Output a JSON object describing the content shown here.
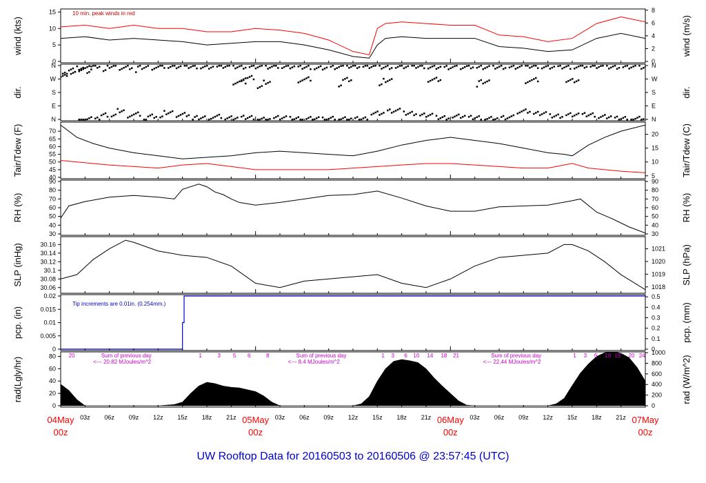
{
  "footer": {
    "title": "UW Rooftop Data for 20160503  to  20160506 @ 23:57:45  (UTC)",
    "color": "#0000cc"
  },
  "time_axis": {
    "hours_total": 72,
    "minor_labels": [
      {
        "h": 3,
        "t": "03z"
      },
      {
        "h": 6,
        "t": "06z"
      },
      {
        "h": 9,
        "t": "09z"
      },
      {
        "h": 12,
        "t": "12z"
      },
      {
        "h": 15,
        "t": "15z"
      },
      {
        "h": 18,
        "t": "18z"
      },
      {
        "h": 21,
        "t": "21z"
      },
      {
        "h": 27,
        "t": "03z"
      },
      {
        "h": 30,
        "t": "06z"
      },
      {
        "h": 33,
        "t": "09z"
      },
      {
        "h": 36,
        "t": "12z"
      },
      {
        "h": 39,
        "t": "15z"
      },
      {
        "h": 42,
        "t": "18z"
      },
      {
        "h": 45,
        "t": "21z"
      },
      {
        "h": 51,
        "t": "03z"
      },
      {
        "h": 54,
        "t": "06z"
      },
      {
        "h": 57,
        "t": "09z"
      },
      {
        "h": 60,
        "t": "12z"
      },
      {
        "h": 63,
        "t": "15z"
      },
      {
        "h": 66,
        "t": "18z"
      },
      {
        "h": 69,
        "t": "21z"
      }
    ],
    "day_labels": [
      {
        "h": 0,
        "date": "04May",
        "hour": "00z"
      },
      {
        "h": 24,
        "date": "05May",
        "hour": "00z"
      },
      {
        "h": 48,
        "date": "06May",
        "hour": "00z"
      },
      {
        "h": 72,
        "date": "07May",
        "hour": "00z"
      }
    ],
    "day_label_color": "#ff0000"
  },
  "chart_data": [
    {
      "type": "line",
      "id": "wind",
      "ylabel_left": "wind (kts)",
      "ylabel_right": "wind (m/s)",
      "yticks_left": [
        0,
        5,
        10,
        15
      ],
      "ylim_left": [
        0,
        15.5
      ],
      "yticks_right": [
        0,
        2,
        4,
        6,
        8
      ],
      "ylim_right": [
        0,
        8
      ],
      "annotation": "10 min. peak winds in red",
      "annotation_color": "#cc0000",
      "series": [
        {
          "color": "#000000",
          "x": [
            0,
            3,
            6,
            9,
            12,
            15,
            18,
            21,
            24,
            27,
            30,
            33,
            36,
            38,
            39,
            40,
            42,
            45,
            48,
            51,
            54,
            57,
            60,
            63,
            66,
            69,
            72
          ],
          "values": [
            7,
            7.5,
            6.5,
            7,
            6.5,
            6,
            5,
            5.5,
            6,
            6,
            5,
            3.5,
            1.5,
            1,
            5,
            7,
            7.5,
            7,
            7,
            7,
            4.5,
            4,
            3,
            3.5,
            7,
            8.5,
            7
          ]
        },
        {
          "color": "#ff0000",
          "x": [
            0,
            3,
            6,
            9,
            12,
            15,
            18,
            21,
            24,
            27,
            30,
            33,
            36,
            38,
            39,
            40,
            42,
            45,
            48,
            51,
            54,
            57,
            60,
            63,
            66,
            69,
            72
          ],
          "values": [
            10.5,
            11,
            10,
            11,
            10,
            10,
            9,
            9,
            10,
            9.5,
            8.5,
            6.5,
            3,
            2,
            10,
            11.5,
            12,
            11.5,
            11,
            11,
            8,
            7.5,
            6,
            7,
            11.5,
            13.5,
            12
          ]
        }
      ]
    },
    {
      "type": "scatter",
      "id": "dir",
      "ylabel_left": "dir.",
      "ylabel_right": "dir.",
      "yticks_left": [
        "N",
        "E",
        "S",
        "W",
        "N"
      ],
      "ylim_degrees": [
        0,
        360
      ],
      "series": [
        {
          "color": "#000000",
          "x": [
            0,
            1,
            2,
            3,
            4,
            6,
            8,
            10,
            12,
            14,
            16,
            18,
            20,
            22,
            24,
            26,
            28,
            30,
            32,
            34,
            36,
            38,
            40,
            42,
            44,
            46,
            48,
            50,
            52,
            54,
            56,
            58,
            60,
            62,
            64,
            66,
            68,
            70,
            72
          ],
          "values": [
            300,
            330,
            345,
            350,
            355,
            355,
            350,
            352,
            355,
            354,
            356,
            355,
            354,
            352,
            355,
            354,
            352,
            350,
            348,
            352,
            355,
            356,
            353,
            352,
            355,
            352,
            350,
            352,
            348,
            352,
            354,
            355,
            352,
            354,
            355,
            354,
            352,
            355,
            354
          ]
        },
        {
          "color": "#000000",
          "x": [
            3,
            5,
            7,
            9,
            11,
            13,
            15,
            17,
            19,
            21,
            23,
            25,
            27,
            29,
            31,
            33,
            35,
            37,
            39,
            41,
            43,
            45,
            47,
            49,
            51,
            53,
            55,
            57,
            59,
            61,
            63,
            65,
            67,
            69,
            71
          ],
          "values": [
            10,
            30,
            60,
            40,
            20,
            45,
            35,
            15,
            20,
            10,
            15,
            5,
            10,
            5,
            8,
            5,
            3,
            5,
            45,
            60,
            40,
            30,
            15,
            20,
            12,
            8,
            15,
            55,
            40,
            25,
            35,
            30,
            20,
            10,
            5
          ]
        },
        {
          "color": "#000000",
          "x": [
            22,
            23,
            25,
            30,
            35,
            40,
            46,
            52,
            58,
            63
          ],
          "values": [
            270,
            280,
            250,
            275,
            265,
            260,
            270,
            255,
            265,
            260
          ]
        }
      ]
    },
    {
      "type": "line",
      "id": "temp",
      "ylabel_left": "Tair/Tdew (F)",
      "ylabel_right": "Tair/Tdew (C)",
      "yticks_left": [
        40,
        45,
        50,
        55,
        60,
        65,
        70
      ],
      "ylim_left": [
        40,
        75
      ],
      "yticks_right": [
        5,
        10,
        15,
        20
      ],
      "ylim_right_from_left": "C=(F-32)*5/9",
      "series": [
        {
          "color": "#000000",
          "x": [
            0,
            2,
            4,
            6,
            9,
            12,
            15,
            18,
            21,
            24,
            27,
            30,
            33,
            36,
            39,
            42,
            45,
            48,
            51,
            54,
            57,
            60,
            62,
            63,
            65,
            67,
            69,
            72
          ],
          "values": [
            74,
            66,
            62,
            59,
            56,
            54,
            52,
            53,
            54,
            56,
            57,
            56,
            55,
            54,
            57,
            61,
            64,
            66,
            64,
            62,
            59,
            56,
            55,
            54,
            61,
            66,
            70,
            74
          ]
        },
        {
          "color": "#ff0000",
          "x": [
            0,
            2,
            4,
            6,
            9,
            12,
            15,
            18,
            21,
            24,
            27,
            30,
            33,
            36,
            39,
            42,
            45,
            48,
            51,
            54,
            57,
            60,
            62,
            63,
            65,
            67,
            69,
            72
          ],
          "values": [
            51,
            50,
            49,
            48,
            47,
            46,
            48,
            49,
            47,
            45,
            45,
            45,
            45,
            46,
            47,
            48,
            49,
            49,
            48,
            47,
            46,
            46,
            48,
            49,
            46,
            45,
            44,
            43
          ]
        }
      ]
    },
    {
      "type": "line",
      "id": "rh",
      "ylabel_left": "RH (%)",
      "ylabel_right": "RH (%)",
      "yticks_left": [
        30,
        40,
        50,
        60,
        70,
        80,
        90
      ],
      "ylim_left": [
        30,
        90
      ],
      "series": [
        {
          "color": "#000000",
          "x": [
            0,
            1,
            3,
            6,
            9,
            12,
            14,
            15,
            17,
            18,
            19,
            20,
            21,
            22,
            24,
            27,
            30,
            33,
            36,
            39,
            42,
            45,
            48,
            51,
            54,
            57,
            60,
            63,
            64,
            66,
            68,
            70,
            72
          ],
          "values": [
            48,
            62,
            67,
            72,
            74,
            72,
            70,
            81,
            87,
            84,
            78,
            75,
            70,
            66,
            63,
            66,
            70,
            74,
            75,
            79,
            71,
            62,
            56,
            56,
            61,
            62,
            63,
            68,
            70,
            55,
            47,
            38,
            31
          ]
        }
      ]
    },
    {
      "type": "line",
      "id": "slp",
      "ylabel_left": "SLP (inHg)",
      "ylabel_right": "SLP (hPa)",
      "yticks_left": [
        30.06,
        30.08,
        30.1,
        30.12,
        30.14,
        30.16
      ],
      "ylim_left": [
        30.05,
        30.175
      ],
      "yticks_right": [
        1018,
        1019,
        1020,
        1021
      ],
      "series": [
        {
          "color": "#000000",
          "x": [
            0,
            2,
            4,
            6,
            8,
            9,
            12,
            15,
            18,
            21,
            24,
            27,
            30,
            33,
            36,
            39,
            42,
            45,
            48,
            51,
            54,
            57,
            60,
            62,
            63,
            65,
            67,
            69,
            72
          ],
          "values": [
            30.08,
            30.09,
            30.125,
            30.15,
            30.17,
            30.165,
            30.145,
            30.135,
            30.13,
            30.11,
            30.07,
            30.06,
            30.075,
            30.08,
            30.085,
            30.09,
            30.07,
            30.06,
            30.08,
            30.11,
            30.13,
            30.135,
            30.14,
            30.16,
            30.16,
            30.145,
            30.12,
            30.09,
            30.055
          ]
        }
      ]
    },
    {
      "type": "line",
      "id": "pcp",
      "ylabel_left": "pcp. (in)",
      "ylabel_right": "pcp. (mm)",
      "yticks_left": [
        0,
        0.005,
        0.01,
        0.015,
        0.02
      ],
      "ylim_left": [
        0,
        0.02
      ],
      "yticks_right": [
        0,
        0.1,
        0.2,
        0.3,
        0.4,
        0.5
      ],
      "annotation": "Tip increments are 0.01in. (0.254mm.)",
      "annotation_color": "#0000cc",
      "series": [
        {
          "color": "#0000cc",
          "x": [
            0,
            15,
            15,
            15.2,
            15.2,
            72
          ],
          "values": [
            0,
            0,
            0.01,
            0.01,
            0.02,
            0.02
          ]
        }
      ]
    },
    {
      "type": "area",
      "id": "rad",
      "ylabel_left": "rad(Lgly/hr)",
      "ylabel_right": "rad (W/m^2)",
      "yticks_left": [
        0,
        20,
        40,
        60,
        80
      ],
      "ylim_left": [
        0,
        85
      ],
      "yticks_right": [
        0,
        200,
        400,
        600,
        800,
        1000
      ],
      "annotations": [
        {
          "h": 1,
          "text": "20"
        },
        {
          "h": 5,
          "text": "Sum of previous day"
        },
        {
          "h": 4,
          "text": "<--- 20.82 MJoules/m^2",
          "row": 2
        },
        {
          "h": 29,
          "text": "Sum of previous day"
        },
        {
          "h": 28,
          "text": "<--- 8.4 MJoules/m^2",
          "row": 2
        },
        {
          "h": 53,
          "text": "Sum of previous day"
        },
        {
          "h": 52,
          "text": "<--- 22.44 MJoules/m^2",
          "row": 2
        }
      ],
      "hour_markers": [
        {
          "h": 17.2,
          "text": "1"
        },
        {
          "h": 19.5,
          "text": "3"
        },
        {
          "h": 21.4,
          "text": "5"
        },
        {
          "h": 23.2,
          "text": "6"
        },
        {
          "h": 25.5,
          "text": "8"
        },
        {
          "h": 39.7,
          "text": "1"
        },
        {
          "h": 40.9,
          "text": "3"
        },
        {
          "h": 42.5,
          "text": "6"
        },
        {
          "h": 43.8,
          "text": "10"
        },
        {
          "h": 45.5,
          "text": "14"
        },
        {
          "h": 47.2,
          "text": "18"
        },
        {
          "h": 48.7,
          "text": "21"
        },
        {
          "h": 63.3,
          "text": "1"
        },
        {
          "h": 64.6,
          "text": "3"
        },
        {
          "h": 65.9,
          "text": "6"
        },
        {
          "h": 67.4,
          "text": "10"
        },
        {
          "h": 68.6,
          "text": "15"
        },
        {
          "h": 70.3,
          "text": "20"
        },
        {
          "h": 71.6,
          "text": "24"
        }
      ],
      "marker_color": "#cc00cc",
      "series": [
        {
          "color": "#000000",
          "x": [
            0,
            1,
            2,
            3,
            12,
            14,
            15,
            16,
            17,
            18,
            19,
            20,
            21,
            22,
            23,
            24,
            25,
            26,
            27,
            36,
            37,
            38,
            39,
            40,
            41,
            42,
            43,
            44,
            45,
            46,
            47,
            48,
            49,
            50,
            51,
            60,
            61,
            62,
            63,
            64,
            65,
            66,
            67,
            68,
            69,
            70,
            71,
            72
          ],
          "values": [
            35,
            25,
            10,
            0,
            0,
            2,
            6,
            20,
            32,
            38,
            36,
            32,
            30,
            29,
            26,
            23,
            16,
            6,
            0,
            0,
            3,
            15,
            40,
            60,
            72,
            75,
            73,
            70,
            60,
            45,
            32,
            20,
            8,
            1,
            0,
            0,
            3,
            12,
            33,
            53,
            68,
            80,
            86,
            88,
            85,
            78,
            62,
            40
          ]
        }
      ]
    }
  ]
}
